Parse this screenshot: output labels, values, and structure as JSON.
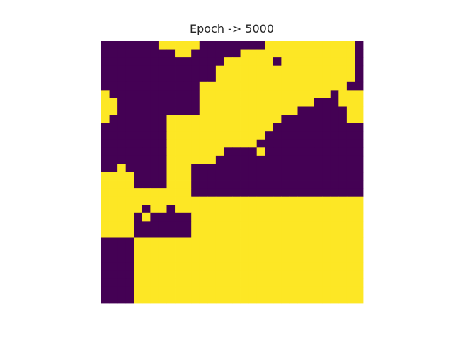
{
  "chart_data": {
    "type": "heatmap",
    "title": "Epoch -> 5000",
    "xlabel": "",
    "ylabel": "",
    "axes_visible": false,
    "grid": false,
    "colormap": "viridis",
    "colors": {
      "0": "#440154",
      "1": "#fde725"
    },
    "rows": 32,
    "cols": 32,
    "grid_values": [
      "00000001111100000000111111111110",
      "00000000011000000111111111111110",
      "00000000000000011111101111111110",
      "00000000000000111111111111111110",
      "00000000000000111111111111111110",
      "00000000000011111111111111111100",
      "10000000000011111111111111110111",
      "11000000000011111111111111000111",
      "11000000000011111111111100000011",
      "10000000111111111111110000000011",
      "00000000111111111111100000000000",
      "00000000111111111111000000000000",
      "00000000111111111110000000000000",
      "00000000111111100001000000000000",
      "00000000111111000000000000000000",
      "00100000111000000000000000000000",
      "11110000111000000000000000000000",
      "11110000111000000000000000000000",
      "11111111111000000000000000000000",
      "11111111111111111111111111111111",
      "11111011011111111111111111111111",
      "11110100000111111111111111111111",
      "11110000000111111111111111111111",
      "11110000000111111111111111111111",
      "00001111111111111111111111111111",
      "00001111111111111111111111111111",
      "00001111111111111111111111111111",
      "00001111111111111111111111111111",
      "00001111111111111111111111111111",
      "00001111111111111111111111111111",
      "00001111111111111111111111111111",
      "00001111111111111111111111111111"
    ]
  }
}
